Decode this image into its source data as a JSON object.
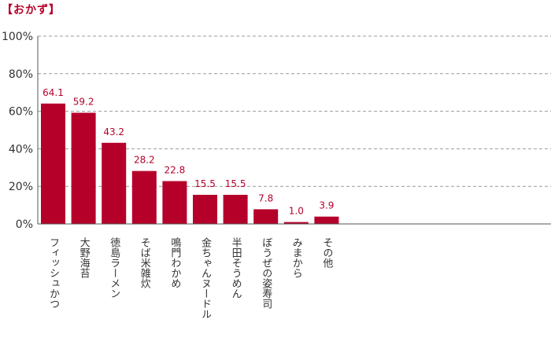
{
  "chart_data": {
    "type": "bar",
    "title": "【おかず】",
    "xlabel": "",
    "ylabel": "",
    "ylim": [
      0,
      100
    ],
    "yticks": [
      0,
      20,
      40,
      60,
      80,
      100
    ],
    "ytick_labels": [
      "0%",
      "20%",
      "40%",
      "60%",
      "80%",
      "100%"
    ],
    "grid": true,
    "categories": [
      "フィッシュかつ",
      "大野海苔",
      "徳島ラーメン",
      "そば米雑炊",
      "鳴門わかめ",
      "金ちゃんヌードル",
      "半田そうめん",
      "ぼうぜの姿寿司",
      "みまから",
      "その他"
    ],
    "values": [
      64.1,
      59.2,
      43.2,
      28.2,
      22.8,
      15.5,
      15.5,
      7.8,
      1.0,
      3.9
    ],
    "value_labels": [
      "64.1",
      "59.2",
      "43.2",
      "28.2",
      "22.8",
      "15.5",
      "15.5",
      "7.8",
      "1.0",
      "3.9"
    ],
    "colors": {
      "bar": "#b5002a",
      "label": "#b5002a",
      "grid": "#999999",
      "axis": "#555555"
    }
  }
}
